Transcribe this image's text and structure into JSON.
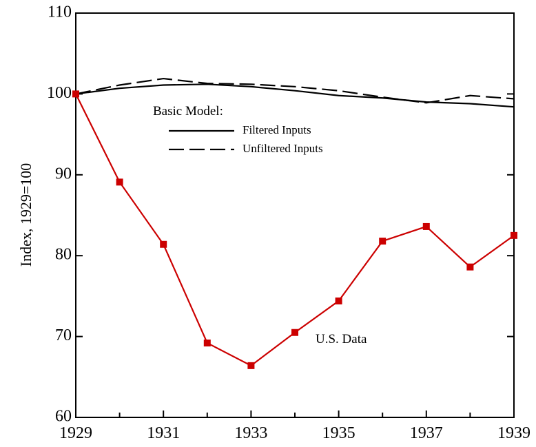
{
  "chart_data": {
    "type": "line",
    "y_label": "Index, 1929=100",
    "legend_title": "Basic Model:",
    "x": [
      1929,
      1930,
      1931,
      1932,
      1933,
      1934,
      1935,
      1936,
      1937,
      1938,
      1939
    ],
    "series": [
      {
        "name": "Filtered Inputs",
        "color": "#000000",
        "dash": "solid",
        "values": [
          100,
          100.7,
          101.1,
          101.2,
          100.9,
          100.4,
          99.8,
          99.5,
          99.0,
          98.8,
          98.4
        ]
      },
      {
        "name": "Unfiltered Inputs",
        "color": "#000000",
        "dash": "dashed",
        "values": [
          100,
          101.1,
          101.9,
          101.3,
          101.2,
          100.9,
          100.4,
          99.6,
          98.9,
          99.8,
          99.4
        ]
      },
      {
        "name": "U.S. Data",
        "color": "#cc0000",
        "dash": "solid",
        "markers": true,
        "values": [
          100,
          89.1,
          81.4,
          69.2,
          66.4,
          70.5,
          74.4,
          81.8,
          83.6,
          78.6,
          82.5
        ]
      }
    ],
    "xlim": [
      1929,
      1939
    ],
    "xticks": [
      1929,
      1931,
      1933,
      1935,
      1937,
      1939
    ],
    "ylim": [
      60,
      110
    ],
    "yticks": [
      60,
      70,
      80,
      90,
      100,
      110
    ],
    "grid": false
  }
}
